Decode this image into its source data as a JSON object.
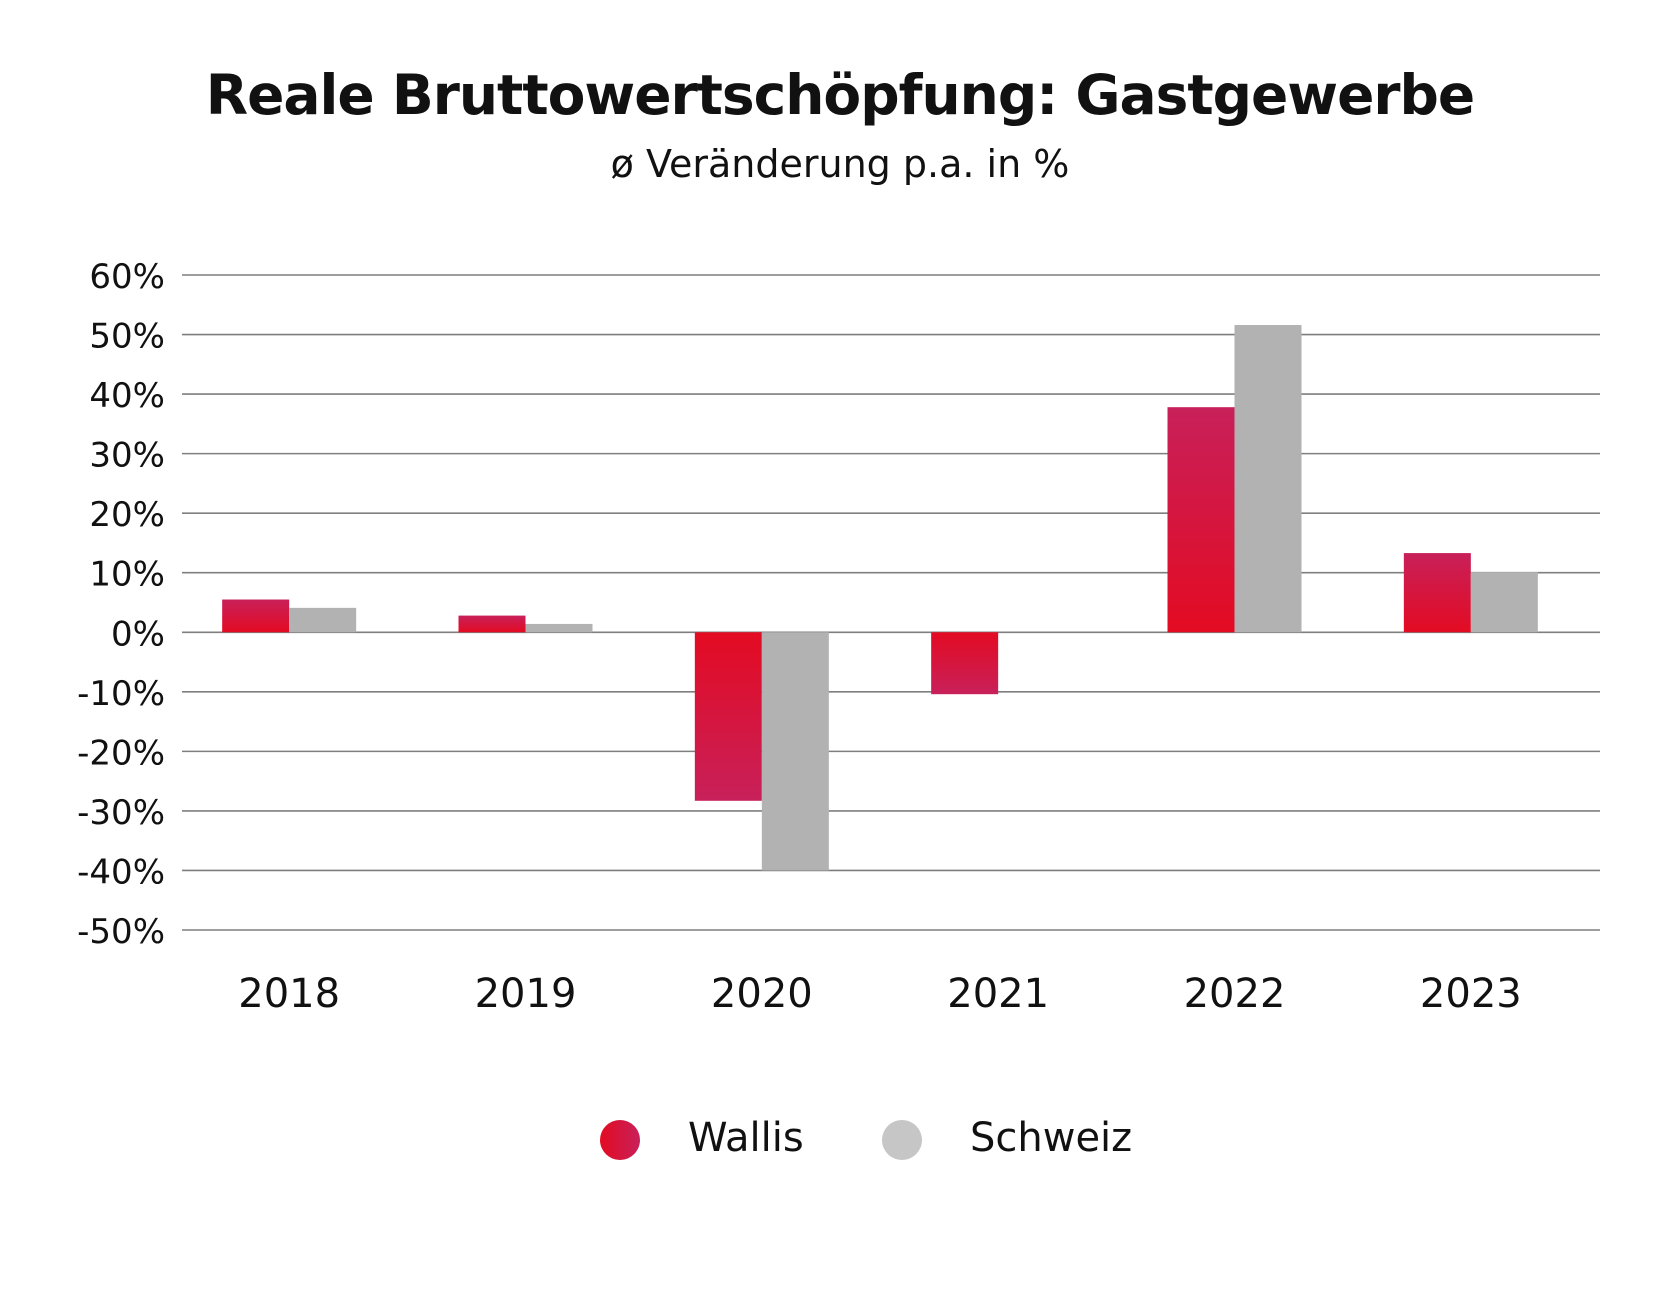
{
  "title": "Reale Bruttowertschöpfung: Gastgewerbe",
  "subtitle": "ø Veränderung p.a. in %",
  "colors": {
    "wallis_top": "#e30b22",
    "wallis_bottom": "#c8205a",
    "schweiz": "#b2b2b2",
    "schweiz_legend": "#c6c6c6",
    "gridline": "#7f7f7f"
  },
  "legend": [
    {
      "label": "Wallis"
    },
    {
      "label": "Schweiz"
    }
  ],
  "chart_data": {
    "type": "bar",
    "title": "Reale Bruttowertschöpfung: Gastgewerbe",
    "subtitle": "ø Veränderung p.a. in %",
    "categories": [
      "2018",
      "2019",
      "2020",
      "2021",
      "2022",
      "2023"
    ],
    "series": [
      {
        "name": "Wallis",
        "values": [
          5.5,
          2.8,
          -28.3,
          -10.4,
          37.8,
          13.3
        ]
      },
      {
        "name": "Schweiz",
        "values": [
          4.1,
          1.4,
          -40.0,
          0.0,
          51.6,
          10.1
        ]
      }
    ],
    "ylim": [
      -50,
      60
    ],
    "yticks": [
      60,
      50,
      40,
      30,
      20,
      10,
      0,
      -10,
      -20,
      -30,
      -40,
      -50
    ],
    "ytick_labels": [
      "60%",
      "50%",
      "40%",
      "30%",
      "20%",
      "10%",
      "0%",
      "-10%",
      "-20%",
      "-30%",
      "-40%",
      "-50%"
    ],
    "grid": true,
    "legend_position": "bottom-center",
    "xlabel": "",
    "ylabel": ""
  }
}
